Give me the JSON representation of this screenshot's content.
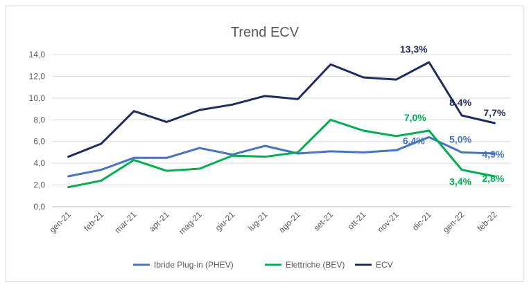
{
  "chart_data": {
    "type": "line",
    "title": "Trend ECV",
    "xlabel": "",
    "ylabel": "",
    "ylim": [
      0,
      14
    ],
    "ytick_step": 2,
    "ytick_labels": [
      "0,0",
      "2,0",
      "4,0",
      "6,0",
      "8,0",
      "10,0",
      "12,0",
      "14,0"
    ],
    "grid": true,
    "legend_position": "bottom",
    "categories": [
      "gen-21",
      "feb-21",
      "mar-21",
      "apr-21",
      "mag-21",
      "giu-21",
      "lug-21",
      "ago-21",
      "set-21",
      "ott-21",
      "nov-21",
      "dic-21",
      "gen-22",
      "feb-22"
    ],
    "series": [
      {
        "name": "Ibride Plug-in (PHEV)",
        "color": "#4472c4",
        "values": [
          2.8,
          3.4,
          4.5,
          4.5,
          5.4,
          4.8,
          5.6,
          4.9,
          5.1,
          5.0,
          5.2,
          6.4,
          5.0,
          4.9
        ],
        "labels": [
          {
            "index": 11,
            "text": "6,4%"
          },
          {
            "index": 12,
            "text": "5,0%"
          },
          {
            "index": 13,
            "text": "4,9%"
          }
        ]
      },
      {
        "name": "Elettriche (BEV)",
        "color": "#00b050",
        "values": [
          1.8,
          2.4,
          4.3,
          3.3,
          3.5,
          4.7,
          4.6,
          5.0,
          8.0,
          7.0,
          6.5,
          7.0,
          3.4,
          2.8
        ],
        "labels": [
          {
            "index": 11,
            "text": "7,0%"
          },
          {
            "index": 12,
            "text": "3,4%"
          },
          {
            "index": 13,
            "text": "2,8%"
          }
        ]
      },
      {
        "name": "ECV",
        "color": "#1f2d5c",
        "values": [
          4.6,
          5.8,
          8.8,
          7.8,
          8.9,
          9.4,
          10.2,
          9.9,
          13.1,
          11.9,
          11.7,
          13.3,
          8.4,
          7.7
        ],
        "labels": [
          {
            "index": 11,
            "text": "13,3%"
          },
          {
            "index": 12,
            "text": "8,4%"
          },
          {
            "index": 13,
            "text": "7,7%"
          }
        ]
      }
    ]
  }
}
